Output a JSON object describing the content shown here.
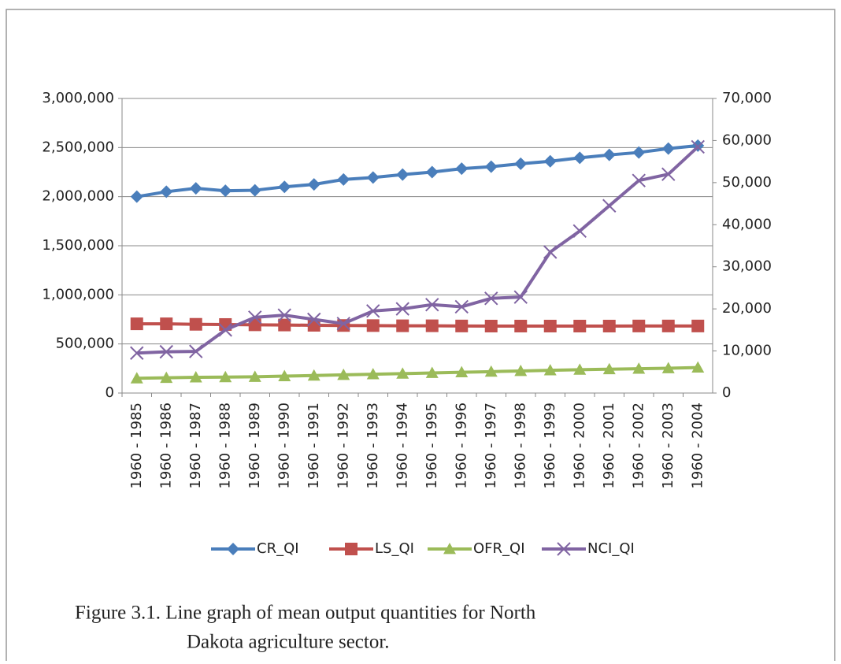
{
  "chart_data": {
    "type": "line",
    "categories": [
      "1960 - 1985",
      "1960 - 1986",
      "1960 - 1987",
      "1960 - 1988",
      "1960 - 1989",
      "1960 - 1990",
      "1960 - 1991",
      "1960 - 1992",
      "1960 - 1993",
      "1960 - 1994",
      "1960 - 1995",
      "1960 - 1996",
      "1960 - 1997",
      "1960 - 1998",
      "1960 - 1999",
      "1960 - 2000",
      "1960 - 2001",
      "1960 - 2002",
      "1960 - 2003",
      "1960 - 2004"
    ],
    "series": [
      {
        "name": "CR_QI",
        "color": "#4a7ebb",
        "marker": "diamond",
        "values": [
          2000000,
          2050000,
          2085000,
          2060000,
          2065000,
          2100000,
          2125000,
          2175000,
          2195000,
          2225000,
          2250000,
          2285000,
          2305000,
          2335000,
          2360000,
          2395000,
          2425000,
          2450000,
          2490000,
          2520000
        ]
      },
      {
        "name": "LS_QI",
        "color": "#c0504d",
        "marker": "square",
        "values": [
          705000,
          705000,
          700000,
          698000,
          695000,
          693000,
          690000,
          688000,
          687000,
          685000,
          685000,
          683000,
          682000,
          682000,
          682000,
          682000,
          682000,
          683000,
          683000,
          683000
        ]
      },
      {
        "name": "OFR_QI",
        "color": "#9bbb59",
        "marker": "triangle",
        "values": [
          150000,
          155000,
          160000,
          162000,
          165000,
          172000,
          178000,
          185000,
          192000,
          198000,
          205000,
          212000,
          218000,
          225000,
          232000,
          238000,
          243000,
          248000,
          253000,
          260000
        ]
      },
      {
        "name": "NCI_QI",
        "color": "#8064a2",
        "marker": "x",
        "axis": "y2",
        "values": [
          9500,
          9800,
          9900,
          15000,
          18000,
          18500,
          17500,
          16500,
          19500,
          20000,
          21000,
          20500,
          22500,
          22800,
          33500,
          38500,
          44500,
          50500,
          52000,
          58500
        ]
      }
    ],
    "ylim": [
      0,
      3000000
    ],
    "yticks": [
      0,
      {
        "value": 500000,
        "label": "500,000"
      },
      {
        "value": 1000000,
        "label": "1,000,000"
      },
      {
        "value": 1500000,
        "label": "1,500,000"
      },
      {
        "value": 2000000,
        "label": "2,000,000"
      },
      {
        "value": 2500000,
        "label": "2,500,000"
      },
      {
        "value": 3000000,
        "label": "3,000,000"
      }
    ],
    "y2lim": [
      0,
      70000
    ],
    "y2ticks": [
      0,
      {
        "value": 10000,
        "label": "10,000"
      },
      {
        "value": 20000,
        "label": "20,000"
      },
      {
        "value": 30000,
        "label": "30,000"
      },
      {
        "value": 40000,
        "label": "40,000"
      },
      {
        "value": 50000,
        "label": "50,000"
      },
      {
        "value": 60000,
        "label": "60,000"
      },
      {
        "value": 70000,
        "label": "70,000"
      }
    ],
    "grid": true,
    "legend": "bottom",
    "caption": [
      "Figure 3.1. Line graph of mean output quantities for North",
      "Dakota agriculture sector."
    ]
  }
}
